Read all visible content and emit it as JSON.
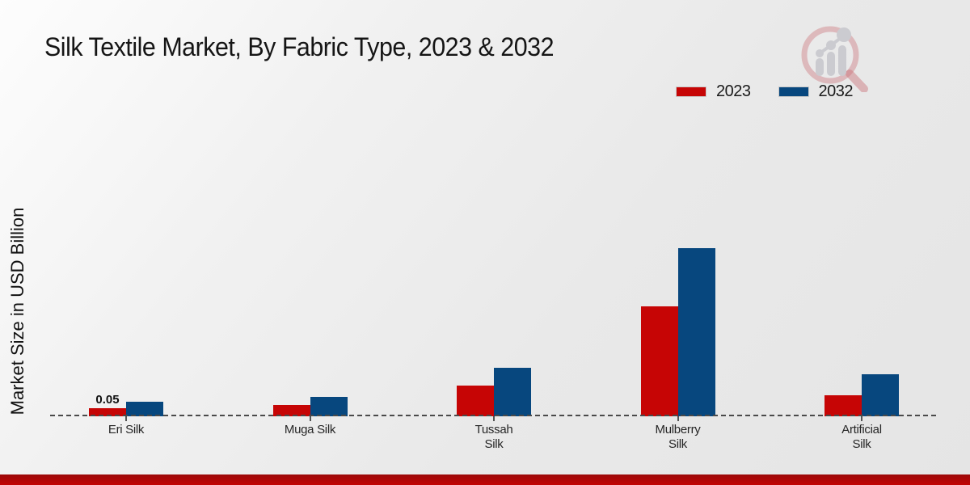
{
  "title": "Silk Textile Market, By Fabric Type, 2023 & 2032",
  "y_axis_label": "Market Size in USD Billion",
  "legend": {
    "items": [
      {
        "label": "2023",
        "color": "#c60505"
      },
      {
        "label": "2032",
        "color": "#07477e"
      }
    ]
  },
  "colors": {
    "series_2023": "#c60505",
    "series_2032": "#07477e",
    "baseline": "#4a4a4a",
    "footer_strip": "#b00606",
    "background": "#ebebeb"
  },
  "watermark_icon": "magnifier-growth-chart-logo",
  "chart_data": {
    "type": "bar",
    "title": "Silk Textile Market, By Fabric Type, 2023 & 2032",
    "xlabel": "",
    "ylabel": "Market Size in USD Billion",
    "categories": [
      "Eri Silk",
      "Muga Silk",
      "Tussah Silk",
      "Mulberry Silk",
      "Artificial Silk"
    ],
    "category_label_lines": [
      [
        "Eri Silk"
      ],
      [
        "Muga Silk"
      ],
      [
        "Tussah",
        "Silk"
      ],
      [
        "Mulberry",
        "Silk"
      ],
      [
        "Artificial",
        "Silk"
      ]
    ],
    "series": [
      {
        "name": "2023",
        "color": "#c60505",
        "values": [
          0.05,
          0.07,
          0.19,
          0.68,
          0.13
        ]
      },
      {
        "name": "2032",
        "color": "#07477e",
        "values": [
          0.09,
          0.12,
          0.3,
          1.04,
          0.26
        ]
      }
    ],
    "data_labels": [
      {
        "category": "Eri Silk",
        "series": "2023",
        "text": "0.05"
      }
    ],
    "ylim": [
      0,
      1.1
    ],
    "grid": false,
    "baseline_style": "dashed",
    "legend_position": "top-right"
  }
}
